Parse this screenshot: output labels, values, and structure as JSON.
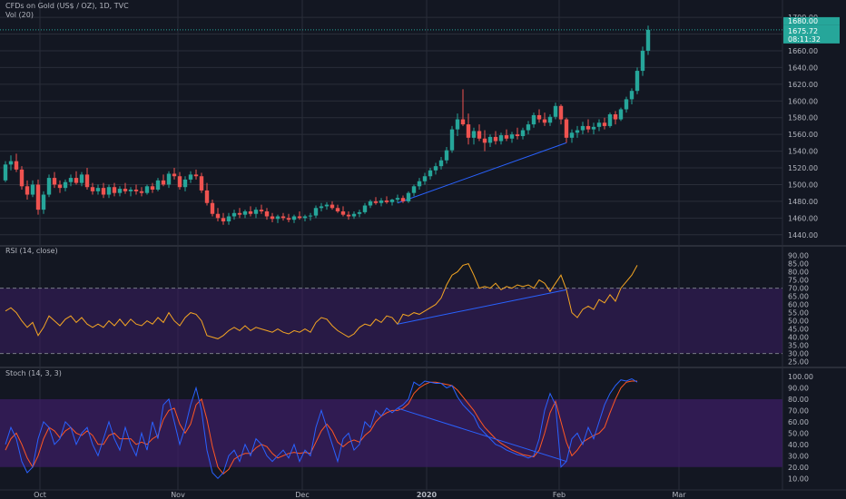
{
  "header": {
    "title": "CFDs on Gold (US$ / OZ), 1D, TVC",
    "vol_label": "Vol (20)",
    "rsi_label": "RSI (14, close)",
    "stoch_label": "Stoch (14, 3, 3)"
  },
  "price_badges": {
    "current_price": "1675.72",
    "countdown": "08:11:32",
    "hidden_label": "1680.00",
    "color": "#26a69a"
  },
  "colors": {
    "background": "#131722",
    "grid": "#2a2e39",
    "up": "#26a69a",
    "down": "#ef5350",
    "rsi_line": "#f5a623",
    "band_fill": "#3b1d63",
    "stoch_k": "#2962ff",
    "stoch_d": "#ff5722",
    "trendline": "#2962ff",
    "axis_text": "#b2b5be"
  },
  "chart_data": [
    {
      "type": "candlestick",
      "title": "CFDs on Gold (US$ / OZ), 1D, TVC",
      "x_ticks": [
        "Oct",
        "Nov",
        "Dec",
        "2020",
        "Feb",
        "Mar"
      ],
      "y_ticks": [
        1440,
        1460,
        1480,
        1500,
        1520,
        1540,
        1560,
        1580,
        1600,
        1620,
        1640,
        1660,
        1680,
        1700
      ],
      "y_tick_labels": [
        "1440.00",
        "1460.00",
        "1480.00",
        "1500.00",
        "1520.00",
        "1540.00",
        "1560.00",
        "1580.00",
        "1600.00",
        "1620.00",
        "1640.00",
        "1660.00",
        "1680.00",
        "1700.00"
      ],
      "ylim": [
        1430,
        1712
      ],
      "grid": true,
      "ohlc": [
        [
          1505,
          1528,
          1503,
          1524
        ],
        [
          1524,
          1535,
          1517,
          1528
        ],
        [
          1528,
          1537,
          1515,
          1518
        ],
        [
          1518,
          1522,
          1494,
          1498
        ],
        [
          1498,
          1505,
          1482,
          1488
        ],
        [
          1488,
          1505,
          1485,
          1500
        ],
        [
          1500,
          1506,
          1464,
          1470
        ],
        [
          1470,
          1492,
          1465,
          1488
        ],
        [
          1488,
          1512,
          1485,
          1508
        ],
        [
          1508,
          1515,
          1496,
          1500
        ],
        [
          1500,
          1505,
          1490,
          1496
        ],
        [
          1496,
          1506,
          1492,
          1503
        ],
        [
          1503,
          1512,
          1498,
          1508
        ],
        [
          1508,
          1516,
          1500,
          1502
        ],
        [
          1502,
          1515,
          1498,
          1512
        ],
        [
          1512,
          1520,
          1494,
          1497
        ],
        [
          1497,
          1502,
          1488,
          1492
        ],
        [
          1492,
          1500,
          1488,
          1496
        ],
        [
          1496,
          1502,
          1484,
          1488
        ],
        [
          1488,
          1500,
          1484,
          1497
        ],
        [
          1497,
          1502,
          1486,
          1490
        ],
        [
          1490,
          1498,
          1486,
          1495
        ],
        [
          1495,
          1502,
          1489,
          1492
        ],
        [
          1492,
          1497,
          1486,
          1494
        ],
        [
          1494,
          1500,
          1488,
          1492
        ],
        [
          1492,
          1497,
          1486,
          1490
        ],
        [
          1490,
          1500,
          1488,
          1498
        ],
        [
          1498,
          1502,
          1490,
          1494
        ],
        [
          1494,
          1508,
          1492,
          1505
        ],
        [
          1505,
          1512,
          1498,
          1500
        ],
        [
          1500,
          1516,
          1496,
          1513
        ],
        [
          1513,
          1520,
          1506,
          1510
        ],
        [
          1510,
          1515,
          1494,
          1497
        ],
        [
          1497,
          1510,
          1492,
          1506
        ],
        [
          1506,
          1516,
          1502,
          1512
        ],
        [
          1512,
          1518,
          1506,
          1510
        ],
        [
          1510,
          1514,
          1490,
          1493
        ],
        [
          1493,
          1502,
          1475,
          1478
        ],
        [
          1478,
          1482,
          1462,
          1465
        ],
        [
          1465,
          1472,
          1456,
          1460
        ],
        [
          1460,
          1466,
          1452,
          1456
        ],
        [
          1456,
          1466,
          1452,
          1462
        ],
        [
          1462,
          1470,
          1458,
          1466
        ],
        [
          1466,
          1472,
          1460,
          1464
        ],
        [
          1464,
          1470,
          1460,
          1468
        ],
        [
          1468,
          1474,
          1462,
          1465
        ],
        [
          1465,
          1473,
          1460,
          1470
        ],
        [
          1470,
          1476,
          1465,
          1468
        ],
        [
          1468,
          1472,
          1458,
          1462
        ],
        [
          1462,
          1466,
          1455,
          1459
        ],
        [
          1459,
          1464,
          1454,
          1462
        ],
        [
          1462,
          1466,
          1457,
          1460
        ],
        [
          1460,
          1465,
          1455,
          1458
        ],
        [
          1458,
          1464,
          1454,
          1462
        ],
        [
          1462,
          1468,
          1458,
          1460
        ],
        [
          1460,
          1464,
          1456,
          1462
        ],
        [
          1462,
          1466,
          1457,
          1463
        ],
        [
          1463,
          1475,
          1460,
          1472
        ],
        [
          1472,
          1478,
          1468,
          1474
        ],
        [
          1474,
          1479,
          1470,
          1476
        ],
        [
          1476,
          1480,
          1470,
          1472
        ],
        [
          1472,
          1476,
          1466,
          1468
        ],
        [
          1468,
          1474,
          1462,
          1464
        ],
        [
          1464,
          1468,
          1458,
          1462
        ],
        [
          1462,
          1468,
          1459,
          1465
        ],
        [
          1465,
          1470,
          1461,
          1467
        ],
        [
          1467,
          1478,
          1465,
          1475
        ],
        [
          1475,
          1482,
          1472,
          1480
        ],
        [
          1480,
          1485,
          1476,
          1478
        ],
        [
          1478,
          1484,
          1474,
          1481
        ],
        [
          1481,
          1486,
          1477,
          1479
        ],
        [
          1479,
          1483,
          1475,
          1482
        ],
        [
          1482,
          1488,
          1478,
          1484
        ],
        [
          1484,
          1487,
          1478,
          1480
        ],
        [
          1480,
          1492,
          1478,
          1490
        ],
        [
          1490,
          1500,
          1486,
          1498
        ],
        [
          1498,
          1508,
          1494,
          1504
        ],
        [
          1504,
          1514,
          1500,
          1510
        ],
        [
          1510,
          1520,
          1506,
          1517
        ],
        [
          1517,
          1526,
          1512,
          1522
        ],
        [
          1522,
          1533,
          1518,
          1529
        ],
        [
          1529,
          1545,
          1525,
          1541
        ],
        [
          1541,
          1570,
          1538,
          1566
        ],
        [
          1566,
          1585,
          1558,
          1578
        ],
        [
          1578,
          1614,
          1570,
          1572
        ],
        [
          1572,
          1585,
          1548,
          1556
        ],
        [
          1556,
          1568,
          1548,
          1564
        ],
        [
          1564,
          1572,
          1552,
          1555
        ],
        [
          1555,
          1565,
          1540,
          1550
        ],
        [
          1550,
          1560,
          1545,
          1557
        ],
        [
          1557,
          1564,
          1548,
          1552
        ],
        [
          1552,
          1562,
          1548,
          1559
        ],
        [
          1559,
          1566,
          1552,
          1555
        ],
        [
          1555,
          1563,
          1550,
          1560
        ],
        [
          1560,
          1568,
          1554,
          1558
        ],
        [
          1558,
          1568,
          1554,
          1565
        ],
        [
          1565,
          1576,
          1560,
          1572
        ],
        [
          1572,
          1586,
          1568,
          1583
        ],
        [
          1583,
          1590,
          1574,
          1578
        ],
        [
          1578,
          1586,
          1570,
          1574
        ],
        [
          1574,
          1584,
          1570,
          1581
        ],
        [
          1581,
          1598,
          1578,
          1594
        ],
        [
          1594,
          1596,
          1572,
          1578
        ],
        [
          1578,
          1580,
          1550,
          1556
        ],
        [
          1556,
          1566,
          1550,
          1562
        ],
        [
          1562,
          1570,
          1556,
          1565
        ],
        [
          1565,
          1575,
          1560,
          1570
        ],
        [
          1570,
          1578,
          1562,
          1566
        ],
        [
          1566,
          1574,
          1560,
          1569
        ],
        [
          1569,
          1578,
          1564,
          1574
        ],
        [
          1574,
          1580,
          1566,
          1570
        ],
        [
          1570,
          1586,
          1568,
          1584
        ],
        [
          1584,
          1588,
          1572,
          1578
        ],
        [
          1578,
          1592,
          1576,
          1590
        ],
        [
          1590,
          1605,
          1586,
          1602
        ],
        [
          1602,
          1615,
          1596,
          1612
        ],
        [
          1612,
          1640,
          1608,
          1636
        ],
        [
          1636,
          1665,
          1630,
          1660
        ],
        [
          1660,
          1690,
          1655,
          1685
        ]
      ]
    },
    {
      "type": "line",
      "title": "RSI (14, close)",
      "y_ticks": [
        25,
        30,
        35,
        40,
        45,
        50,
        55,
        60,
        65,
        70,
        75,
        80,
        85,
        90
      ],
      "y_tick_labels": [
        "25.00",
        "30.00",
        "35.00",
        "40.00",
        "45.00",
        "50.00",
        "55.00",
        "60.00",
        "65.00",
        "70.00",
        "75.00",
        "80.00",
        "85.00",
        "90.00"
      ],
      "ylim": [
        22,
        92
      ],
      "bands": [
        30,
        70
      ],
      "rsi": [
        56,
        58,
        55,
        50,
        46,
        49,
        41,
        46,
        53,
        50,
        47,
        51,
        53,
        49,
        52,
        48,
        46,
        48,
        46,
        50,
        47,
        51,
        47,
        51,
        48,
        47,
        50,
        48,
        52,
        49,
        55,
        50,
        47,
        52,
        55,
        54,
        50,
        41,
        40,
        39,
        41,
        44,
        46,
        44,
        47,
        44,
        46,
        45,
        44,
        43,
        45,
        43,
        42,
        44,
        43,
        45,
        43,
        49,
        52,
        51,
        47,
        44,
        42,
        40,
        42,
        46,
        48,
        47,
        51,
        49,
        53,
        52,
        48,
        54,
        53,
        55,
        54,
        56,
        58,
        60,
        64,
        72,
        78,
        80,
        84,
        85,
        78,
        70,
        71,
        70,
        73,
        69,
        71,
        70,
        72,
        71,
        72,
        70,
        75,
        73,
        68,
        73,
        78,
        69,
        55,
        52,
        57,
        59,
        57,
        63,
        61,
        66,
        62,
        70,
        74,
        78,
        84
      ]
    },
    {
      "type": "line",
      "title": "Stoch (14, 3, 3)",
      "y_ticks": [
        10,
        20,
        30,
        40,
        50,
        60,
        70,
        80,
        90,
        100
      ],
      "y_tick_labels": [
        "10.00",
        "20.00",
        "30.00",
        "40.00",
        "50.00",
        "60.00",
        "70.00",
        "80.00",
        "90.00",
        "100.00"
      ],
      "ylim": [
        3,
        104
      ],
      "bands": [
        20,
        80
      ],
      "k": [
        40,
        55,
        45,
        25,
        15,
        20,
        45,
        60,
        55,
        40,
        45,
        60,
        55,
        40,
        50,
        55,
        40,
        30,
        45,
        60,
        45,
        35,
        55,
        40,
        30,
        50,
        35,
        60,
        45,
        75,
        80,
        60,
        40,
        55,
        75,
        90,
        70,
        35,
        15,
        10,
        15,
        30,
        35,
        25,
        40,
        30,
        45,
        40,
        30,
        25,
        30,
        35,
        28,
        40,
        25,
        35,
        30,
        55,
        70,
        55,
        40,
        25,
        45,
        50,
        35,
        40,
        60,
        55,
        70,
        65,
        72,
        68,
        72,
        75,
        80,
        95,
        92,
        96,
        95,
        94,
        94,
        90,
        92,
        82,
        75,
        70,
        65,
        55,
        50,
        45,
        40,
        38,
        35,
        33,
        31,
        30,
        28,
        30,
        45,
        70,
        85,
        75,
        20,
        25,
        45,
        50,
        40,
        55,
        45,
        60,
        75,
        85,
        92,
        97,
        96,
        98,
        95
      ],
      "d": [
        35,
        45,
        50,
        40,
        28,
        20,
        30,
        45,
        55,
        52,
        46,
        52,
        55,
        50,
        48,
        52,
        48,
        40,
        40,
        48,
        50,
        45,
        45,
        45,
        40,
        42,
        40,
        45,
        48,
        62,
        70,
        72,
        58,
        50,
        58,
        75,
        80,
        62,
        38,
        20,
        14,
        18,
        27,
        30,
        32,
        32,
        37,
        40,
        38,
        32,
        28,
        30,
        32,
        33,
        32,
        33,
        32,
        42,
        52,
        58,
        52,
        42,
        38,
        42,
        44,
        42,
        48,
        52,
        60,
        65,
        68,
        70,
        70,
        72,
        76,
        85,
        90,
        93,
        95,
        95,
        94,
        93,
        92,
        88,
        82,
        76,
        70,
        62,
        55,
        50,
        45,
        41,
        38,
        35,
        33,
        31,
        30,
        29,
        35,
        50,
        68,
        78,
        60,
        42,
        30,
        35,
        42,
        45,
        48,
        50,
        55,
        68,
        80,
        90,
        95,
        96,
        96
      ]
    }
  ]
}
